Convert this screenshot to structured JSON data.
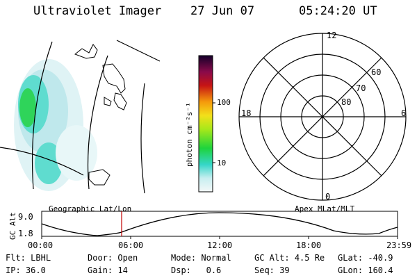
{
  "header": {
    "title": "Ultraviolet Imager",
    "date": "27 Jun 07",
    "time": "05:24:20 UT"
  },
  "colorbar": {
    "unit_label": "photon cm⁻²s⁻¹",
    "ticks": [
      "100",
      "10"
    ]
  },
  "polar": {
    "mlt_labels": [
      "12",
      "18",
      "6",
      "0"
    ],
    "lat_labels": [
      "60",
      "70",
      "80"
    ]
  },
  "panels": {
    "left_label": "Geographic Lat/Lon",
    "right_label": "Apex MLat/MLT"
  },
  "orbit": {
    "ylabel": "GC Alt",
    "yticks": [
      "9.0",
      "1.8"
    ],
    "xticks": [
      "00:00",
      "06:00",
      "12:00",
      "18:00",
      "23:59"
    ],
    "current_time_marker": "05:24"
  },
  "status": {
    "row1": [
      {
        "key": "Flt:",
        "val": "LBHL"
      },
      {
        "key": "Door:",
        "val": "Open"
      },
      {
        "key": "Mode:",
        "val": "Normal"
      },
      {
        "key": "GC Alt:",
        "val": "4.5 Re"
      },
      {
        "key": "GLat:",
        "val": "-40.9"
      }
    ],
    "row2": [
      {
        "key": "IP:",
        "val": "36.0"
      },
      {
        "key": "Gain:",
        "val": "14"
      },
      {
        "key": "Dsp:",
        "val": "0.6"
      },
      {
        "key": "Seq:",
        "val": "39"
      },
      {
        "key": "GLon:",
        "val": "160.4"
      }
    ]
  },
  "colors": {
    "marker": "#c00000",
    "aurora_low": "#bfe8ec",
    "aurora_mid": "#3fd6c9",
    "aurora_high": "#2fd45a"
  }
}
